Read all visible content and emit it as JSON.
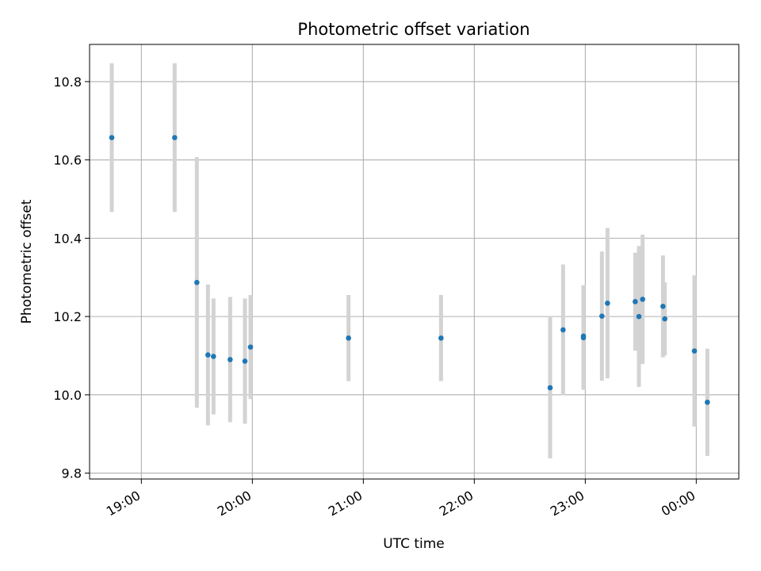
{
  "chart_data": {
    "type": "scatter",
    "title": "Photometric offset variation",
    "xlabel": "UTC time",
    "ylabel": "Photometric offset",
    "x_ticks": [
      "19:00",
      "20:00",
      "21:00",
      "22:00",
      "23:00",
      "00:00"
    ],
    "y_ticks": [
      "9.8",
      "10.0",
      "10.2",
      "10.4",
      "10.6",
      "10.8"
    ],
    "xlim": [
      "18:32",
      "00:23"
    ],
    "ylim": [
      9.785,
      10.895
    ],
    "grid": true,
    "marker_color": "#1f77b4",
    "errorbar_color": "#d3d3d3",
    "points": [
      {
        "time": "18:44",
        "y": 10.657,
        "err": 0.19
      },
      {
        "time": "19:18",
        "y": 10.657,
        "err": 0.19
      },
      {
        "time": "19:30",
        "y": 10.287,
        "err": 0.32
      },
      {
        "time": "19:36",
        "y": 10.102,
        "err": 0.18
      },
      {
        "time": "19:39",
        "y": 10.098,
        "err": 0.148
      },
      {
        "time": "19:48",
        "y": 10.09,
        "err": 0.16
      },
      {
        "time": "19:56",
        "y": 10.086,
        "err": 0.16
      },
      {
        "time": "19:59",
        "y": 10.122,
        "err": 0.133
      },
      {
        "time": "20:52",
        "y": 10.145,
        "err": 0.11
      },
      {
        "time": "21:42",
        "y": 10.145,
        "err": 0.11
      },
      {
        "time": "22:41",
        "y": 10.018,
        "err": 0.18
      },
      {
        "time": "22:48",
        "y": 10.166,
        "err": 0.167
      },
      {
        "time": "22:59",
        "y": 10.146,
        "err": 0.133
      },
      {
        "time": "22:59",
        "y": 10.15,
        "err": 0.13
      },
      {
        "time": "23:09",
        "y": 10.201,
        "err": 0.165
      },
      {
        "time": "23:12",
        "y": 10.234,
        "err": 0.192
      },
      {
        "time": "23:27",
        "y": 10.238,
        "err": 0.125
      },
      {
        "time": "23:29",
        "y": 10.2,
        "err": 0.18
      },
      {
        "time": "23:31",
        "y": 10.244,
        "err": 0.165
      },
      {
        "time": "23:42",
        "y": 10.226,
        "err": 0.13
      },
      {
        "time": "23:43",
        "y": 10.194,
        "err": 0.093
      },
      {
        "time": "23:59",
        "y": 10.112,
        "err": 0.193
      },
      {
        "time": "00:06",
        "y": 9.981,
        "err": 0.137
      }
    ]
  }
}
